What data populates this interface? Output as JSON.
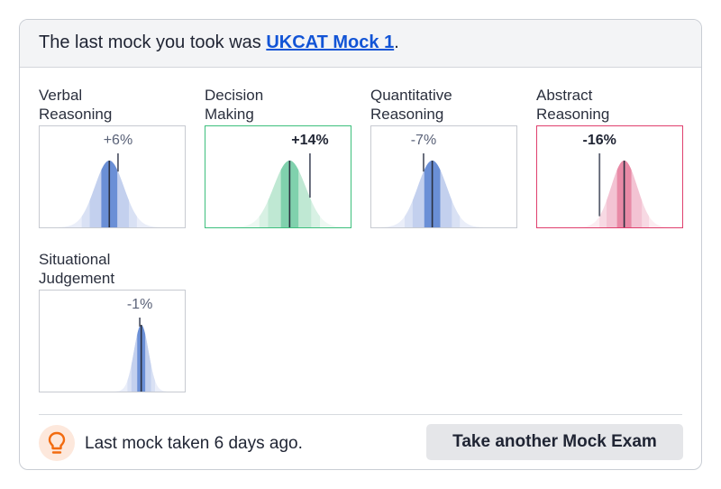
{
  "header": {
    "prefix": "The last mock you took was ",
    "mock_link": "UKCAT Mock 1",
    "suffix": "."
  },
  "sections": [
    {
      "line1": "Verbal",
      "line2": "Reasoning",
      "delta": "+6%",
      "status": "neutral"
    },
    {
      "line1": "Decision",
      "line2": "Making",
      "delta": "+14%",
      "status": "good"
    },
    {
      "line1": "Quantitative",
      "line2": "Reasoning",
      "delta": "-7%",
      "status": "neutral"
    },
    {
      "line1": "Abstract",
      "line2": "Reasoning",
      "delta": "-16%",
      "status": "bad"
    },
    {
      "line1": "Situational",
      "line2": "Judgement",
      "delta": "-1%",
      "status": "neutral"
    }
  ],
  "footer": {
    "icon": "lightbulb-icon",
    "message": "Last mock taken 6 days ago.",
    "button_label": "Take another Mock Exam"
  },
  "colors": {
    "link": "#1254d6",
    "neutral_dark": "#6a8fd6",
    "good_dark": "#80d1ad",
    "bad_dark": "#e88aa6",
    "good_border": "#3dbf7d",
    "bad_border": "#e0406e",
    "tip_orange": "#f26b0f"
  },
  "chart_data": [
    {
      "type": "area",
      "title": "Verbal Reasoning",
      "annotation": "+6%",
      "distribution_center_pct": 0.48,
      "spread": 0.2,
      "marker_pct": 0.54,
      "change": 6
    },
    {
      "type": "area",
      "title": "Decision Making",
      "annotation": "+14%",
      "distribution_center_pct": 0.58,
      "spread": 0.22,
      "marker_pct": 0.72,
      "change": 14
    },
    {
      "type": "area",
      "title": "Quantitative Reasoning",
      "annotation": "-7%",
      "distribution_center_pct": 0.42,
      "spread": 0.2,
      "marker_pct": 0.36,
      "change": -7
    },
    {
      "type": "area",
      "title": "Abstract Reasoning",
      "annotation": "-16%",
      "distribution_center_pct": 0.6,
      "spread": 0.18,
      "marker_pct": 0.43,
      "change": -16
    },
    {
      "type": "area",
      "title": "Situational Judgement",
      "annotation": "-1%",
      "distribution_center_pct": 0.7,
      "spread": 0.1,
      "marker_pct": 0.69,
      "change": -1
    }
  ]
}
